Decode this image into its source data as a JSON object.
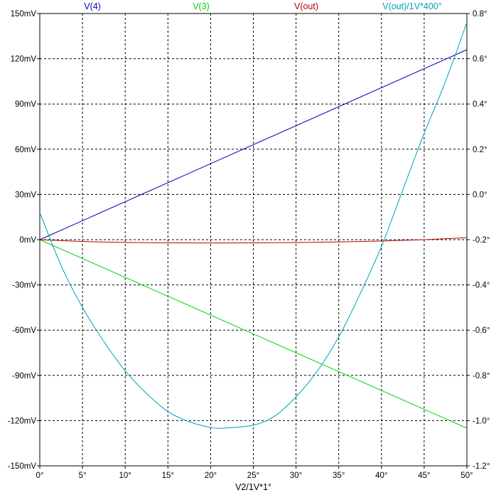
{
  "chart_data": {
    "type": "line",
    "title": "",
    "xlabel": "V2/1V*1°",
    "x_ticks": [
      "0°",
      "5°",
      "10°",
      "15°",
      "20°",
      "25°",
      "30°",
      "35°",
      "40°",
      "45°",
      "50°"
    ],
    "xlim": [
      0,
      50
    ],
    "y_left_ticks": [
      "150mV",
      "120mV",
      "90mV",
      "60mV",
      "30mV",
      "0mV",
      "-30mV",
      "-60mV",
      "-90mV",
      "-120mV",
      "-150mV"
    ],
    "ylim_left_mV": [
      -150,
      150
    ],
    "y_right_ticks": [
      "0.8°",
      "0.6°",
      "0.4°",
      "0.2°",
      "0.0°",
      "-0.2°",
      "-0.4°",
      "-0.6°",
      "-0.8°",
      "-1.0°",
      "-1.2°"
    ],
    "ylim_right_deg": [
      -1.2,
      0.8
    ],
    "grid": true,
    "legend_position": "top",
    "series": [
      {
        "name": "V(4)",
        "color": "#0000b4",
        "axis": "left",
        "x": [
          0,
          50
        ],
        "y": [
          0,
          126
        ]
      },
      {
        "name": "V(3)",
        "color": "#00d200",
        "axis": "left",
        "x": [
          0,
          50
        ],
        "y": [
          0,
          -125
        ]
      },
      {
        "name": "V(out)",
        "color": "#b40000",
        "axis": "left",
        "x": [
          0,
          5,
          10,
          15,
          20,
          25,
          30,
          35,
          40,
          45,
          50
        ],
        "y": [
          0,
          -1.2,
          -1.8,
          -2.1,
          -2.2,
          -2.1,
          -1.9,
          -1.5,
          -0.9,
          0,
          1.3
        ]
      },
      {
        "name": "V(out)/1V*400°",
        "color": "#00a0b4",
        "axis": "right",
        "x": [
          0,
          2.5,
          5,
          7.5,
          10,
          12.5,
          15,
          17.5,
          20,
          21.6,
          25,
          27.5,
          30,
          32.5,
          35,
          37.5,
          40,
          42.5,
          45,
          47.5,
          50
        ],
        "y": [
          -0.08,
          -0.315,
          -0.5,
          -0.65,
          -0.78,
          -0.88,
          -0.96,
          -1.005,
          -1.03,
          -1.033,
          -1.02,
          -0.98,
          -0.895,
          -0.78,
          -0.63,
          -0.44,
          -0.23,
          0.02,
          0.27,
          0.5,
          0.76
        ]
      }
    ]
  }
}
